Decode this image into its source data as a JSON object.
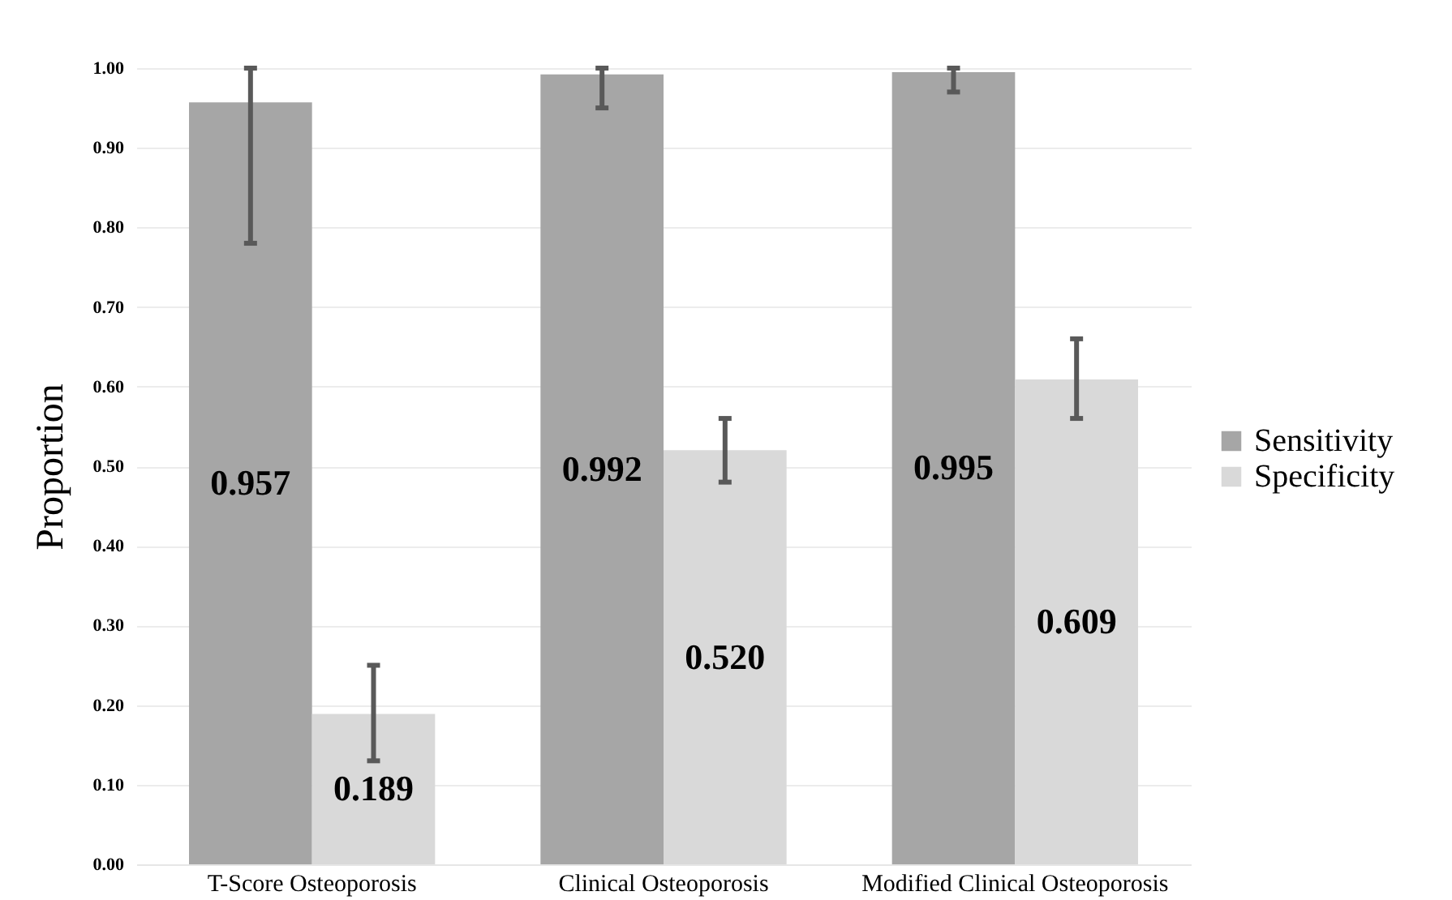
{
  "chart_data": {
    "type": "bar",
    "ylabel": "Proportion",
    "categories": [
      "T-Score Osteoporosis",
      "Clinical Osteoporosis",
      "Modified Clinical Osteoporosis"
    ],
    "series": [
      {
        "name": "Sensitivity",
        "color": "#a6a6a6",
        "values": [
          0.957,
          0.992,
          0.995
        ],
        "value_labels": [
          "0.957",
          "0.992",
          "0.995"
        ],
        "errors": [
          [
            0.78,
            1.0
          ],
          [
            0.95,
            1.0
          ],
          [
            0.97,
            1.0
          ]
        ]
      },
      {
        "name": "Specificity",
        "color": "#d9d9d9",
        "values": [
          0.189,
          0.52,
          0.609
        ],
        "value_labels": [
          "0.189",
          "0.520",
          "0.609"
        ],
        "errors": [
          [
            0.13,
            0.25
          ],
          [
            0.48,
            0.56
          ],
          [
            0.56,
            0.66
          ]
        ]
      }
    ],
    "ylim": [
      0,
      1
    ],
    "yticks": [
      {
        "value": 0,
        "label": "0.00"
      },
      {
        "value": 0.1,
        "label": "0.10"
      },
      {
        "value": 0.2,
        "label": "0.20"
      },
      {
        "value": 0.3,
        "label": "0.30"
      },
      {
        "value": 0.4,
        "label": "0.40"
      },
      {
        "value": 0.5,
        "label": "0.50"
      },
      {
        "value": 0.6,
        "label": "0.60"
      },
      {
        "value": 0.7,
        "label": "0.70"
      },
      {
        "value": 0.8,
        "label": "0.80"
      },
      {
        "value": 0.9,
        "label": "0.90"
      },
      {
        "value": 1,
        "label": "1.00"
      }
    ],
    "grid": "y",
    "legend": "right"
  }
}
